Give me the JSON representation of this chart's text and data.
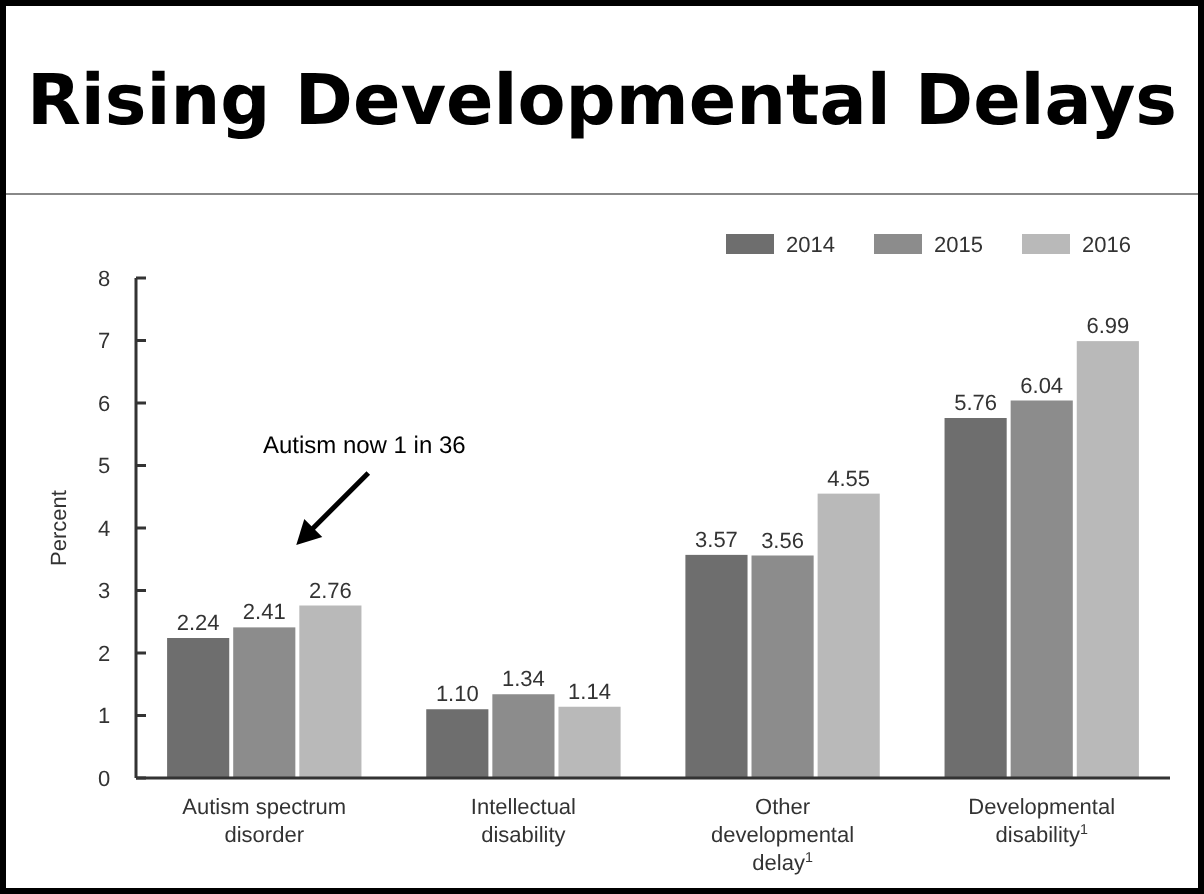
{
  "chart_data": {
    "type": "bar",
    "title": "Rising Developmental Delays",
    "ylabel": "Percent",
    "categories": [
      "Autism spectrum disorder",
      "Intellectual disability",
      "Other developmental delay$^{1}$",
      "Developmental disability$^{1}$"
    ],
    "series": [
      {
        "name": "2014",
        "color": "#6e6e6e",
        "values": [
          2.24,
          1.1,
          3.57,
          5.76
        ]
      },
      {
        "name": "2015",
        "color": "#8c8c8c",
        "values": [
          2.41,
          1.34,
          3.56,
          6.04
        ]
      },
      {
        "name": "2016",
        "color": "#b9b9b9",
        "values": [
          2.76,
          1.14,
          4.55,
          6.99
        ]
      }
    ],
    "ylim": [
      0,
      8
    ],
    "yticks": [
      0,
      1,
      2,
      3,
      4,
      5,
      6,
      7,
      8
    ],
    "value_labels": [
      [
        "2.24",
        "1.10",
        "3.57",
        "5.76"
      ],
      [
        "2.41",
        "1.34",
        "3.56",
        "6.04"
      ],
      [
        "2.76",
        "1.14",
        "4.55",
        "6.99"
      ]
    ],
    "legend": "top right",
    "grid": false,
    "annotations": [
      "Autism now 1 in 36"
    ]
  }
}
